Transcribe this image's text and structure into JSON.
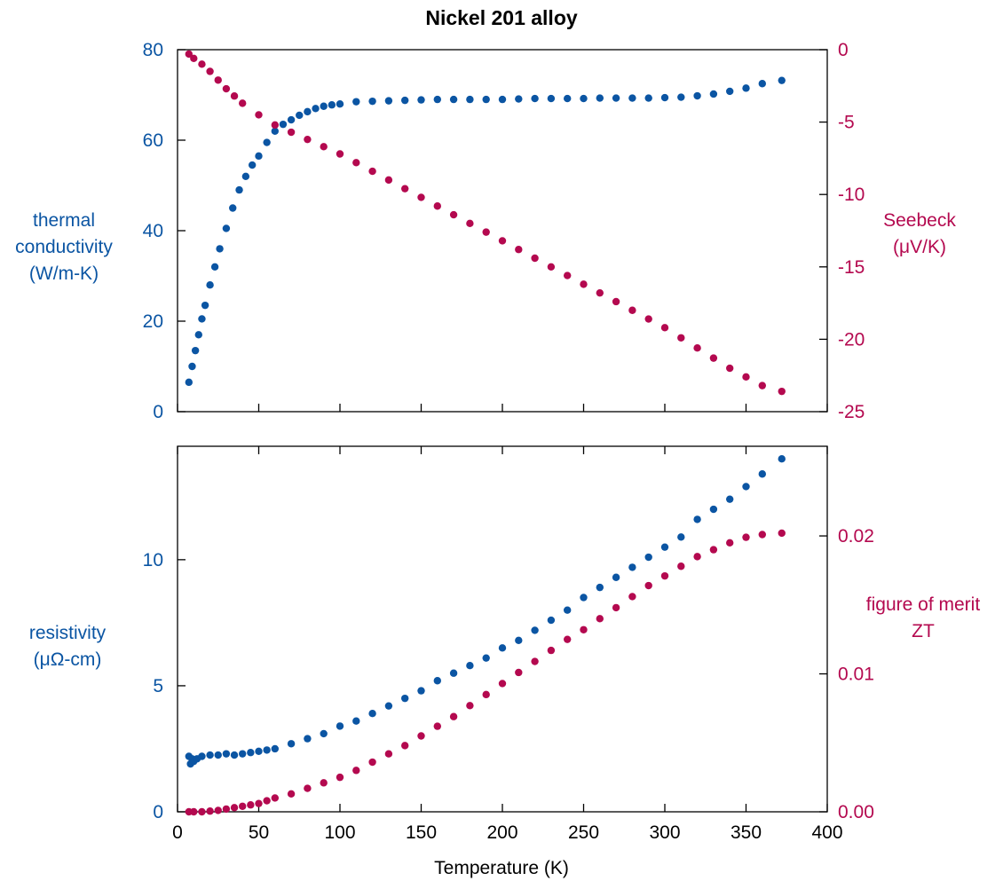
{
  "colors": {
    "blue": "#0b55a3",
    "red": "#b4094f",
    "axis": "#000000"
  },
  "chart_data": [
    {
      "type": "scatter",
      "title": "Nickel 201 alloy",
      "xlabel": "",
      "xlim": [
        0,
        400
      ],
      "x_ticks": [
        0,
        50,
        100,
        150,
        200,
        250,
        300,
        350,
        400
      ],
      "y_left": {
        "label_lines": [
          "thermal",
          "conductivity",
          "(W/m-K)"
        ],
        "ylim": [
          0,
          80
        ],
        "ticks": [
          0,
          20,
          40,
          60,
          80
        ],
        "tick_labels": [
          "0",
          "20",
          "40",
          "60",
          "80"
        ]
      },
      "y_right": {
        "label_lines": [
          "Seebeck",
          "(μV/K)"
        ],
        "ylim": [
          -25,
          0
        ],
        "ticks": [
          -25,
          -20,
          -15,
          -10,
          -5,
          0
        ],
        "tick_labels": [
          "-25",
          "-20",
          "-15",
          "-10",
          "-5",
          "0"
        ]
      },
      "series": [
        {
          "axis": "left",
          "color": "blue",
          "x": [
            7,
            9,
            11,
            13,
            15,
            17,
            20,
            23,
            26,
            30,
            34,
            38,
            42,
            46,
            50,
            55,
            60,
            65,
            70,
            75,
            80,
            85,
            90,
            95,
            100,
            110,
            120,
            130,
            140,
            150,
            160,
            170,
            180,
            190,
            200,
            210,
            220,
            230,
            240,
            250,
            260,
            270,
            280,
            290,
            300,
            310,
            320,
            330,
            340,
            350,
            360,
            372
          ],
          "y": [
            6.5,
            10,
            13.5,
            17,
            20.5,
            23.5,
            28,
            32,
            36,
            40.5,
            45,
            49,
            52,
            54.5,
            56.5,
            59.5,
            62,
            63.5,
            64.5,
            65.5,
            66.3,
            67,
            67.5,
            67.8,
            68,
            68.5,
            68.6,
            68.7,
            68.8,
            68.9,
            69,
            69,
            69,
            69,
            69,
            69.1,
            69.2,
            69.2,
            69.2,
            69.2,
            69.3,
            69.3,
            69.3,
            69.3,
            69.4,
            69.5,
            69.8,
            70.2,
            70.8,
            71.5,
            72.5,
            73.2
          ]
        },
        {
          "axis": "right",
          "color": "red",
          "x": [
            7,
            10,
            15,
            20,
            25,
            30,
            35,
            40,
            50,
            60,
            70,
            80,
            90,
            100,
            110,
            120,
            130,
            140,
            150,
            160,
            170,
            180,
            190,
            200,
            210,
            220,
            230,
            240,
            250,
            260,
            270,
            280,
            290,
            300,
            310,
            320,
            330,
            340,
            350,
            360,
            372
          ],
          "y": [
            -0.3,
            -0.6,
            -1.0,
            -1.5,
            -2.1,
            -2.7,
            -3.2,
            -3.7,
            -4.5,
            -5.2,
            -5.7,
            -6.2,
            -6.7,
            -7.2,
            -7.8,
            -8.4,
            -9.0,
            -9.6,
            -10.2,
            -10.8,
            -11.4,
            -12.0,
            -12.6,
            -13.2,
            -13.8,
            -14.4,
            -15.0,
            -15.6,
            -16.2,
            -16.8,
            -17.4,
            -18.0,
            -18.6,
            -19.2,
            -19.9,
            -20.6,
            -21.3,
            -22.0,
            -22.6,
            -23.2,
            -23.6
          ]
        }
      ]
    },
    {
      "type": "scatter",
      "xlabel": "Temperature (K)",
      "xlim": [
        0,
        400
      ],
      "x_ticks": [
        0,
        50,
        100,
        150,
        200,
        250,
        300,
        350,
        400
      ],
      "x_tick_labels": [
        "0",
        "50",
        "100",
        "150",
        "200",
        "250",
        "300",
        "350",
        "400"
      ],
      "y_left": {
        "label_lines": [
          "resistivity",
          "(μΩ-cm)"
        ],
        "ylim": [
          0,
          14.5
        ],
        "ticks": [
          0,
          5,
          10
        ],
        "tick_labels": [
          "0",
          "5",
          "10"
        ]
      },
      "y_right": {
        "label_lines": [
          "figure of merit",
          "ZT"
        ],
        "ylim": [
          0,
          0.0265
        ],
        "ticks": [
          0,
          0.01,
          0.02
        ],
        "tick_labels": [
          "0.00",
          "0.01",
          "0.02"
        ]
      },
      "series": [
        {
          "axis": "left",
          "color": "blue",
          "x": [
            7,
            8,
            9,
            10,
            12,
            15,
            20,
            25,
            30,
            35,
            40,
            45,
            50,
            55,
            60,
            70,
            80,
            90,
            100,
            110,
            120,
            130,
            140,
            150,
            160,
            170,
            180,
            190,
            200,
            210,
            220,
            230,
            240,
            250,
            260,
            270,
            280,
            290,
            300,
            310,
            320,
            330,
            340,
            350,
            360,
            372
          ],
          "y": [
            2.2,
            1.9,
            2.1,
            2.0,
            2.1,
            2.2,
            2.25,
            2.25,
            2.3,
            2.25,
            2.3,
            2.35,
            2.4,
            2.45,
            2.5,
            2.7,
            2.9,
            3.1,
            3.4,
            3.6,
            3.9,
            4.2,
            4.5,
            4.8,
            5.2,
            5.5,
            5.8,
            6.1,
            6.5,
            6.8,
            7.2,
            7.6,
            8.0,
            8.5,
            8.9,
            9.3,
            9.7,
            10.1,
            10.5,
            10.9,
            11.6,
            12.0,
            12.4,
            12.9,
            13.4,
            14.0
          ]
        },
        {
          "axis": "right",
          "color": "red",
          "x": [
            7,
            10,
            15,
            20,
            25,
            30,
            35,
            40,
            45,
            50,
            55,
            60,
            70,
            80,
            90,
            100,
            110,
            120,
            130,
            140,
            150,
            160,
            170,
            180,
            190,
            200,
            210,
            220,
            230,
            240,
            250,
            260,
            270,
            280,
            290,
            300,
            310,
            320,
            330,
            340,
            350,
            360,
            372
          ],
          "y": [
            0.0,
            0.0,
            0.0,
            5e-05,
            0.0001,
            0.0002,
            0.0003,
            0.0004,
            0.0005,
            0.0006,
            0.0008,
            0.001,
            0.0013,
            0.0017,
            0.0021,
            0.0025,
            0.003,
            0.0036,
            0.0042,
            0.0048,
            0.0055,
            0.0062,
            0.0069,
            0.0077,
            0.0085,
            0.0093,
            0.0101,
            0.0109,
            0.0117,
            0.0125,
            0.0132,
            0.014,
            0.0148,
            0.0156,
            0.0164,
            0.0171,
            0.0178,
            0.0185,
            0.019,
            0.0195,
            0.0199,
            0.0201,
            0.0202
          ]
        }
      ]
    }
  ]
}
